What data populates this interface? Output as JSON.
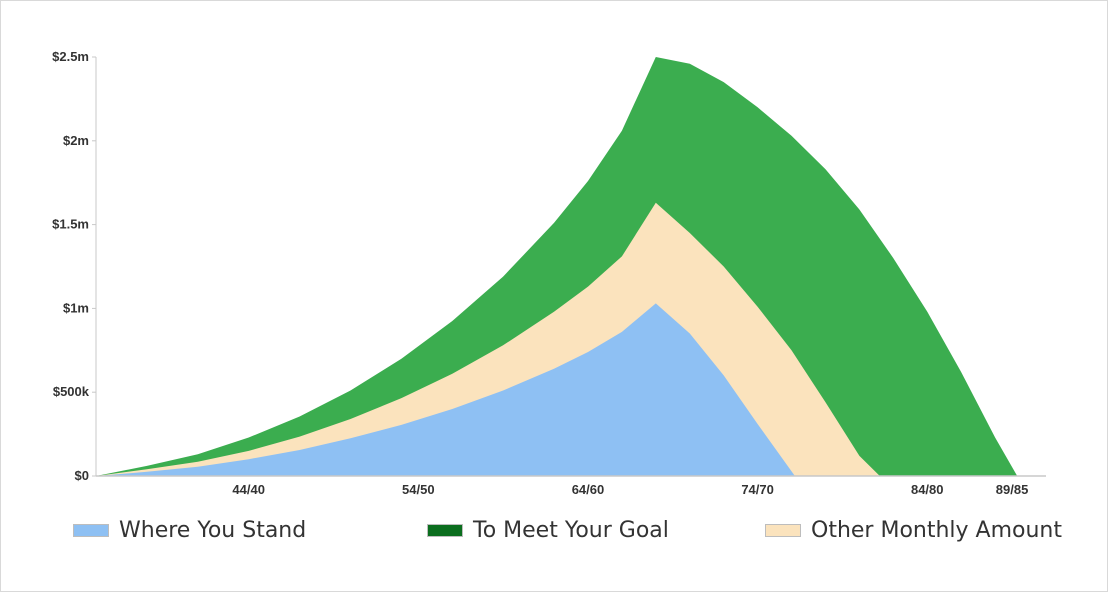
{
  "chart_data": {
    "type": "area",
    "stacked": true,
    "y_ticks": [
      "$0",
      "$500k",
      "$1m",
      "$1.5m",
      "$2m",
      "$2.5m"
    ],
    "y_tick_values": [
      0,
      500000,
      1000000,
      1500000,
      2000000,
      2500000
    ],
    "x_ticks": [
      "44/40",
      "54/50",
      "64/60",
      "74/70",
      "84/80",
      "89/85"
    ],
    "x_tick_values": [
      44,
      54,
      64,
      74,
      84,
      89
    ],
    "xlim": [
      35,
      91
    ],
    "ylim": [
      0,
      2500000
    ],
    "grid": false,
    "legend_position": "bottom",
    "series": [
      {
        "name": "Where You Stand",
        "color": "#8ec0f3",
        "x": [
          35,
          38,
          41,
          44,
          47,
          50,
          53,
          56,
          59,
          62,
          64,
          66,
          68,
          70,
          72,
          74,
          76.2
        ],
        "values": [
          0,
          25000,
          55000,
          100000,
          155000,
          225000,
          305000,
          400000,
          510000,
          640000,
          740000,
          860000,
          1030000,
          850000,
          600000,
          310000,
          0
        ]
      },
      {
        "name": "Other Monthly Amount",
        "color": "#fbe3bd",
        "x": [
          35,
          38,
          41,
          44,
          47,
          50,
          53,
          56,
          59,
          62,
          64,
          66,
          68,
          70,
          72,
          74,
          76,
          78,
          80,
          81.2
        ],
        "values": [
          0,
          40000,
          85000,
          150000,
          235000,
          340000,
          465000,
          610000,
          780000,
          980000,
          1130000,
          1310000,
          1630000,
          1450000,
          1250000,
          1010000,
          750000,
          440000,
          120000,
          0
        ]
      },
      {
        "name": "To Meet Your Goal",
        "color": "#3bad4f",
        "legend_color": "#0b6e1e",
        "x": [
          35,
          38,
          41,
          44,
          47,
          50,
          53,
          56,
          59,
          62,
          64,
          66,
          68,
          70,
          72,
          74,
          76,
          78,
          80,
          82,
          84,
          86,
          88,
          89.3
        ],
        "values": [
          0,
          60000,
          130000,
          230000,
          355000,
          510000,
          700000,
          925000,
          1190000,
          1510000,
          1760000,
          2060000,
          2500000,
          2460000,
          2350000,
          2200000,
          2030000,
          1830000,
          1590000,
          1300000,
          980000,
          620000,
          230000,
          0
        ]
      }
    ]
  },
  "legend": {
    "items": [
      {
        "label": "Where You Stand",
        "color": "#8ec0f3"
      },
      {
        "label": "To Meet Your Goal",
        "color": "#0b6e1e"
      },
      {
        "label": "Other Monthly Amount",
        "color": "#fbe3bd"
      }
    ]
  }
}
